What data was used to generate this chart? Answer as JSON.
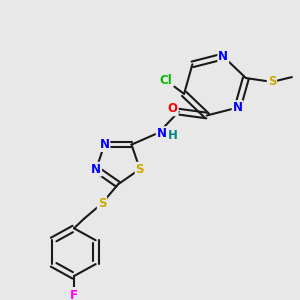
{
  "bg_color": "#e8e8e8",
  "bond_color": "#1a1a1a",
  "bond_width": 1.5,
  "atom_colors": {
    "N": "#0000ff",
    "O": "#ff0000",
    "S": "#ccaa00",
    "Cl": "#00bb00",
    "F": "#ff00ff",
    "H": "#008888",
    "C": "#1a1a1a"
  },
  "font_size": 8.5,
  "fig_size": [
    3.0,
    3.0
  ],
  "dpi": 100
}
